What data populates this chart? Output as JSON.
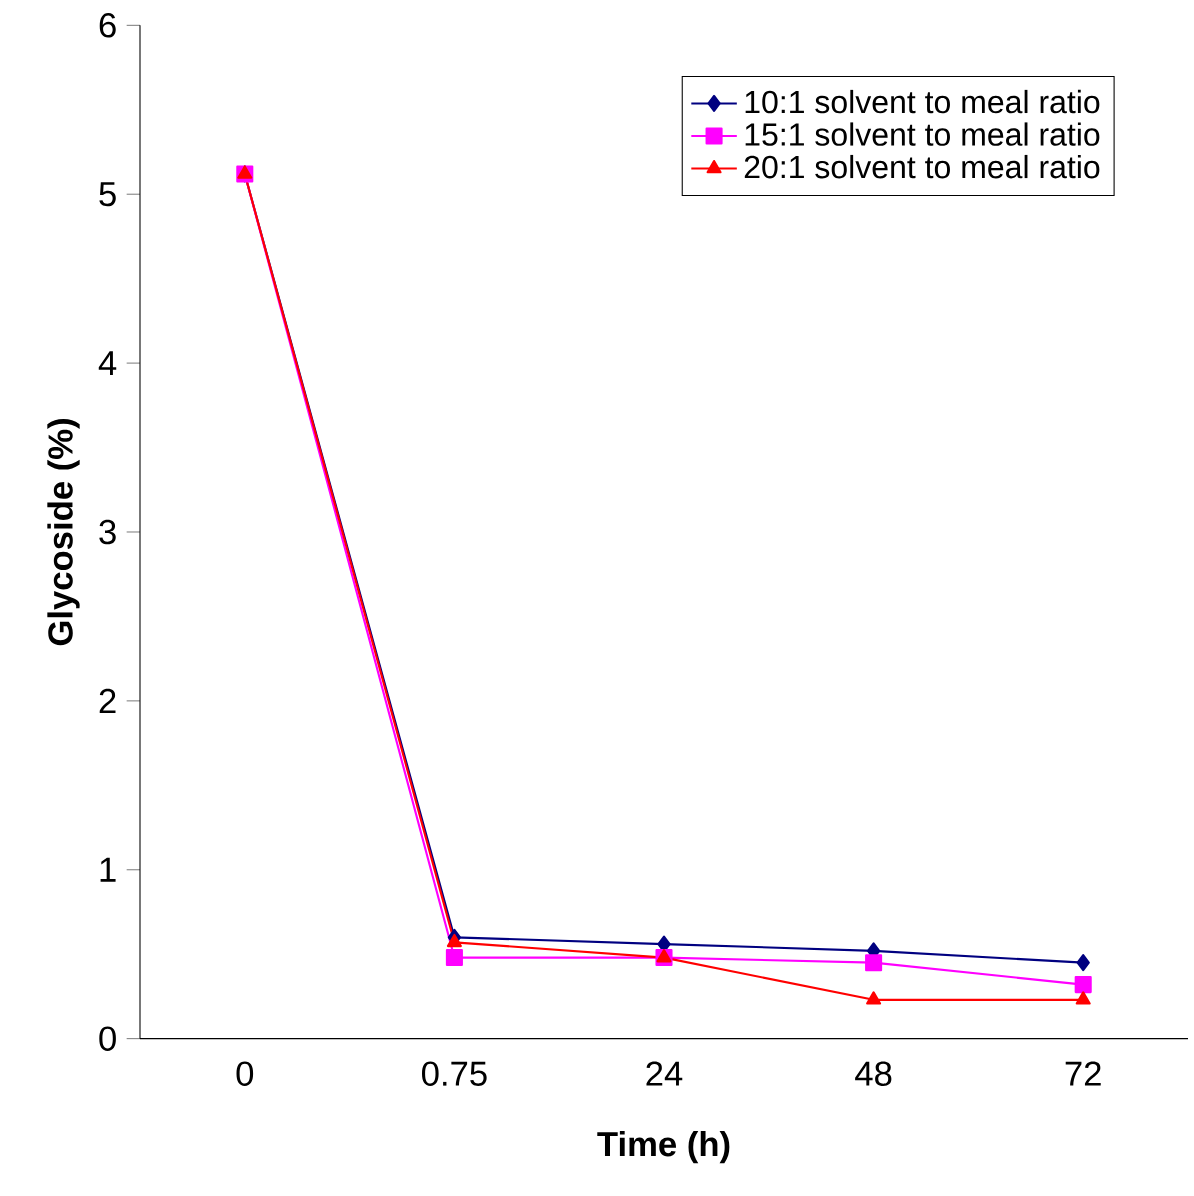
{
  "chart_data": {
    "type": "line",
    "xlabel": "Time (h)",
    "ylabel": "Glycoside (%)",
    "categories": [
      "0",
      "0.75",
      "24",
      "48",
      "72"
    ],
    "ylim": [
      0,
      6
    ],
    "yticks": [
      0,
      1,
      2,
      3,
      4,
      5,
      6
    ],
    "grid": false,
    "legend": "top right",
    "series": [
      {
        "name": "10:1 solvent to meal ratio",
        "color": "#000080",
        "marker": "diamond",
        "values": [
          5.12,
          0.6,
          0.56,
          0.52,
          0.45
        ]
      },
      {
        "name": "15:1 solvent to meal ratio",
        "color": "#ff00ff",
        "marker": "square",
        "values": [
          5.12,
          0.48,
          0.48,
          0.45,
          0.32
        ]
      },
      {
        "name": "20:1 solvent to meal ratio",
        "color": "#ff0000",
        "marker": "triangle",
        "values": [
          5.12,
          0.57,
          0.48,
          0.23,
          0.23
        ]
      }
    ]
  }
}
